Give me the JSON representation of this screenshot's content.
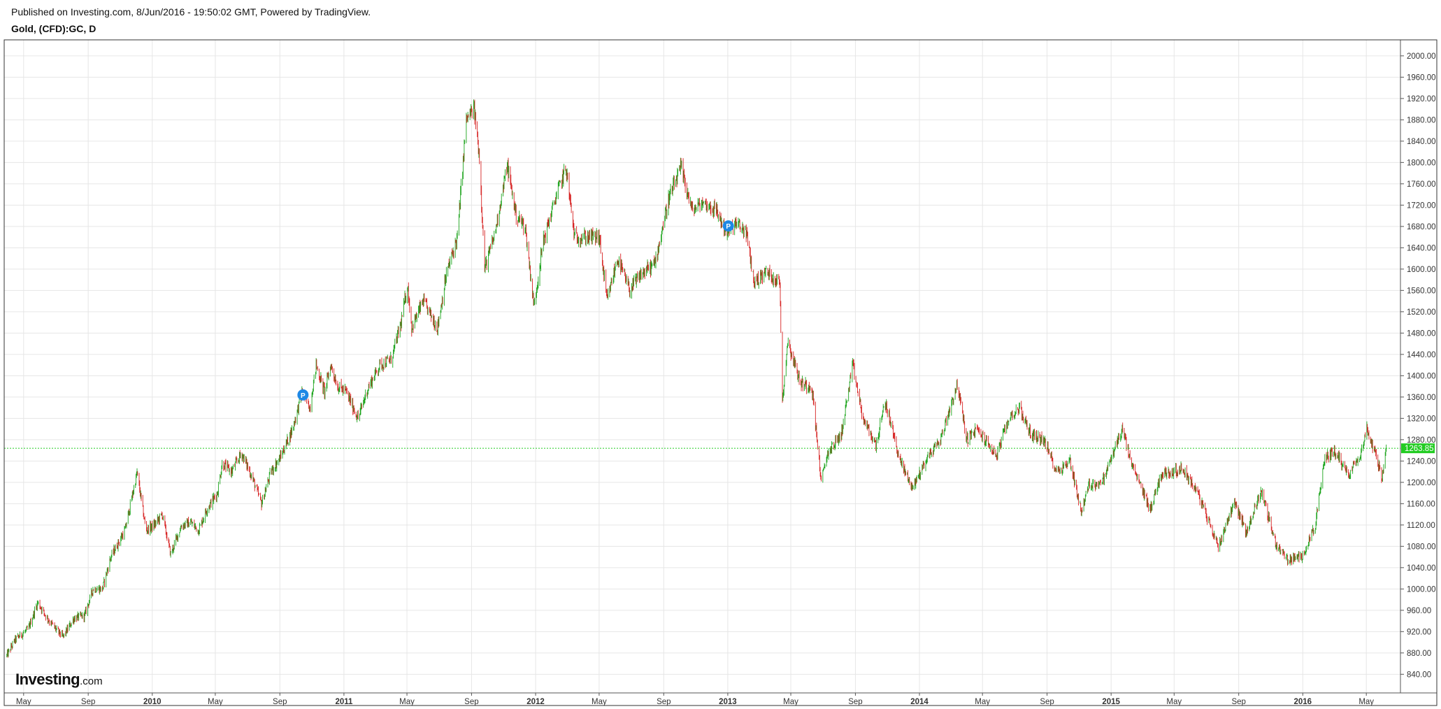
{
  "header": {
    "published": "Published on Investing.com, 8/Jun/2016 - 19:50:02 GMT, Powered by TradingView.",
    "symbol": "Gold, (CFD):GC, D"
  },
  "logo": {
    "main": "Investing",
    "suffix": ".com"
  },
  "colors": {
    "up": "#1aa31a",
    "down": "#d62020",
    "grid": "#e6e6e6",
    "last_price": "#22cc22",
    "marker": "#1e88e5"
  },
  "chart_data": {
    "type": "line",
    "title": "",
    "xlabel": "",
    "ylabel": "",
    "ylim": [
      805,
      2030
    ],
    "xlim": [
      "2009-03-25",
      "2016-07-05"
    ],
    "grid": true,
    "y_ticks": [
      "840.00",
      "880.00",
      "920.00",
      "960.00",
      "1000.00",
      "1040.00",
      "1080.00",
      "1120.00",
      "1160.00",
      "1200.00",
      "1240.00",
      "1280.00",
      "1320.00",
      "1360.00",
      "1400.00",
      "1440.00",
      "1480.00",
      "1520.00",
      "1560.00",
      "1600.00",
      "1640.00",
      "1680.00",
      "1720.00",
      "1760.00",
      "1800.00",
      "1840.00",
      "1880.00",
      "1920.00",
      "1960.00",
      "2000.00"
    ],
    "x_ticks": [
      {
        "label": "May",
        "date": "2009-05-01",
        "year": false
      },
      {
        "label": "Sep",
        "date": "2009-09-01",
        "year": false
      },
      {
        "label": "2010",
        "date": "2010-01-01",
        "year": true
      },
      {
        "label": "May",
        "date": "2010-05-01",
        "year": false
      },
      {
        "label": "Sep",
        "date": "2010-09-01",
        "year": false
      },
      {
        "label": "2011",
        "date": "2011-01-01",
        "year": true
      },
      {
        "label": "May",
        "date": "2011-05-01",
        "year": false
      },
      {
        "label": "Sep",
        "date": "2011-09-01",
        "year": false
      },
      {
        "label": "2012",
        "date": "2012-01-01",
        "year": true
      },
      {
        "label": "May",
        "date": "2012-05-01",
        "year": false
      },
      {
        "label": "Sep",
        "date": "2012-09-01",
        "year": false
      },
      {
        "label": "2013",
        "date": "2013-01-01",
        "year": true
      },
      {
        "label": "May",
        "date": "2013-05-01",
        "year": false
      },
      {
        "label": "Sep",
        "date": "2013-09-01",
        "year": false
      },
      {
        "label": "2014",
        "date": "2014-01-01",
        "year": true
      },
      {
        "label": "May",
        "date": "2014-05-01",
        "year": false
      },
      {
        "label": "Sep",
        "date": "2014-09-01",
        "year": false
      },
      {
        "label": "2015",
        "date": "2015-01-01",
        "year": true
      },
      {
        "label": "May",
        "date": "2015-05-01",
        "year": false
      },
      {
        "label": "Sep",
        "date": "2015-09-01",
        "year": false
      },
      {
        "label": "2016",
        "date": "2016-01-01",
        "year": true
      },
      {
        "label": "May",
        "date": "2016-05-01",
        "year": false
      }
    ],
    "last_price": 1263.85,
    "last_price_label": "1263.85",
    "markers": [
      {
        "label": "P",
        "date": "2010-10-15",
        "price": 1364
      },
      {
        "label": "P",
        "date": "2013-01-02",
        "price": 1681
      }
    ],
    "series": [
      {
        "points": [
          [
            "2009-03-30",
            875
          ],
          [
            "2009-04-15",
            905
          ],
          [
            "2009-05-10",
            925
          ],
          [
            "2009-05-28",
            975
          ],
          [
            "2009-06-15",
            945
          ],
          [
            "2009-07-01",
            925
          ],
          [
            "2009-07-15",
            910
          ],
          [
            "2009-08-05",
            945
          ],
          [
            "2009-08-25",
            950
          ],
          [
            "2009-09-10",
            1000
          ],
          [
            "2009-09-28",
            1000
          ],
          [
            "2009-10-14",
            1060
          ],
          [
            "2009-11-10",
            1110
          ],
          [
            "2009-11-25",
            1180
          ],
          [
            "2009-12-03",
            1218
          ],
          [
            "2009-12-20",
            1110
          ],
          [
            "2010-01-05",
            1120
          ],
          [
            "2010-01-20",
            1140
          ],
          [
            "2010-02-05",
            1065
          ],
          [
            "2010-02-25",
            1118
          ],
          [
            "2010-03-15",
            1125
          ],
          [
            "2010-03-30",
            1110
          ],
          [
            "2010-04-15",
            1150
          ],
          [
            "2010-05-05",
            1180
          ],
          [
            "2010-05-14",
            1235
          ],
          [
            "2010-06-01",
            1220
          ],
          [
            "2010-06-20",
            1255
          ],
          [
            "2010-07-10",
            1210
          ],
          [
            "2010-07-28",
            1160
          ],
          [
            "2010-08-15",
            1220
          ],
          [
            "2010-09-01",
            1245
          ],
          [
            "2010-09-25",
            1300
          ],
          [
            "2010-10-14",
            1370
          ],
          [
            "2010-10-28",
            1340
          ],
          [
            "2010-11-09",
            1420
          ],
          [
            "2010-11-25",
            1370
          ],
          [
            "2010-12-07",
            1420
          ],
          [
            "2010-12-20",
            1380
          ],
          [
            "2011-01-05",
            1370
          ],
          [
            "2011-01-28",
            1320
          ],
          [
            "2011-02-15",
            1375
          ],
          [
            "2011-03-10",
            1420
          ],
          [
            "2011-04-01",
            1430
          ],
          [
            "2011-04-20",
            1500
          ],
          [
            "2011-05-02",
            1570
          ],
          [
            "2011-05-10",
            1490
          ],
          [
            "2011-06-01",
            1540
          ],
          [
            "2011-06-28",
            1490
          ],
          [
            "2011-07-15",
            1590
          ],
          [
            "2011-08-05",
            1660
          ],
          [
            "2011-08-22",
            1880
          ],
          [
            "2011-09-06",
            1900
          ],
          [
            "2011-09-16",
            1810
          ],
          [
            "2011-09-26",
            1600
          ],
          [
            "2011-10-15",
            1665
          ],
          [
            "2011-11-08",
            1795
          ],
          [
            "2011-11-25",
            1700
          ],
          [
            "2011-12-12",
            1680
          ],
          [
            "2011-12-29",
            1530
          ],
          [
            "2012-01-15",
            1650
          ],
          [
            "2012-02-10",
            1740
          ],
          [
            "2012-02-28",
            1790
          ],
          [
            "2012-03-15",
            1660
          ],
          [
            "2012-04-10",
            1660
          ],
          [
            "2012-05-01",
            1660
          ],
          [
            "2012-05-16",
            1540
          ],
          [
            "2012-06-05",
            1620
          ],
          [
            "2012-06-28",
            1560
          ],
          [
            "2012-07-20",
            1590
          ],
          [
            "2012-08-15",
            1610
          ],
          [
            "2012-09-10",
            1730
          ],
          [
            "2012-10-04",
            1790
          ],
          [
            "2012-10-25",
            1710
          ],
          [
            "2012-11-15",
            1725
          ],
          [
            "2012-12-10",
            1710
          ],
          [
            "2012-12-31",
            1665
          ],
          [
            "2013-01-15",
            1685
          ],
          [
            "2013-02-05",
            1670
          ],
          [
            "2013-02-20",
            1575
          ],
          [
            "2013-03-15",
            1595
          ],
          [
            "2013-04-10",
            1575
          ],
          [
            "2013-04-15",
            1355
          ],
          [
            "2013-04-25",
            1465
          ],
          [
            "2013-05-20",
            1385
          ],
          [
            "2013-06-10",
            1380
          ],
          [
            "2013-06-28",
            1200
          ],
          [
            "2013-07-10",
            1255
          ],
          [
            "2013-08-05",
            1290
          ],
          [
            "2013-08-27",
            1420
          ],
          [
            "2013-09-15",
            1320
          ],
          [
            "2013-10-10",
            1270
          ],
          [
            "2013-10-28",
            1350
          ],
          [
            "2013-11-25",
            1240
          ],
          [
            "2013-12-19",
            1190
          ],
          [
            "2014-01-15",
            1245
          ],
          [
            "2014-02-10",
            1280
          ],
          [
            "2014-03-14",
            1385
          ],
          [
            "2014-04-01",
            1280
          ],
          [
            "2014-04-20",
            1300
          ],
          [
            "2014-05-28",
            1250
          ],
          [
            "2014-06-20",
            1320
          ],
          [
            "2014-07-10",
            1340
          ],
          [
            "2014-08-01",
            1290
          ],
          [
            "2014-08-25",
            1280
          ],
          [
            "2014-09-20",
            1220
          ],
          [
            "2014-10-15",
            1240
          ],
          [
            "2014-11-05",
            1145
          ],
          [
            "2014-11-20",
            1195
          ],
          [
            "2014-12-15",
            1200
          ],
          [
            "2015-01-22",
            1300
          ],
          [
            "2015-02-10",
            1230
          ],
          [
            "2015-03-17",
            1150
          ],
          [
            "2015-04-06",
            1215
          ],
          [
            "2015-05-18",
            1225
          ],
          [
            "2015-06-15",
            1180
          ],
          [
            "2015-07-24",
            1080
          ],
          [
            "2015-08-24",
            1165
          ],
          [
            "2015-09-15",
            1105
          ],
          [
            "2015-10-14",
            1185
          ],
          [
            "2015-11-10",
            1085
          ],
          [
            "2015-12-03",
            1055
          ],
          [
            "2015-12-30",
            1060
          ],
          [
            "2016-01-25",
            1120
          ],
          [
            "2016-02-12",
            1245
          ],
          [
            "2016-03-01",
            1260
          ],
          [
            "2016-03-28",
            1215
          ],
          [
            "2016-04-20",
            1255
          ],
          [
            "2016-05-02",
            1300
          ],
          [
            "2016-05-20",
            1250
          ],
          [
            "2016-05-31",
            1205
          ],
          [
            "2016-06-08",
            1263
          ]
        ]
      }
    ]
  }
}
